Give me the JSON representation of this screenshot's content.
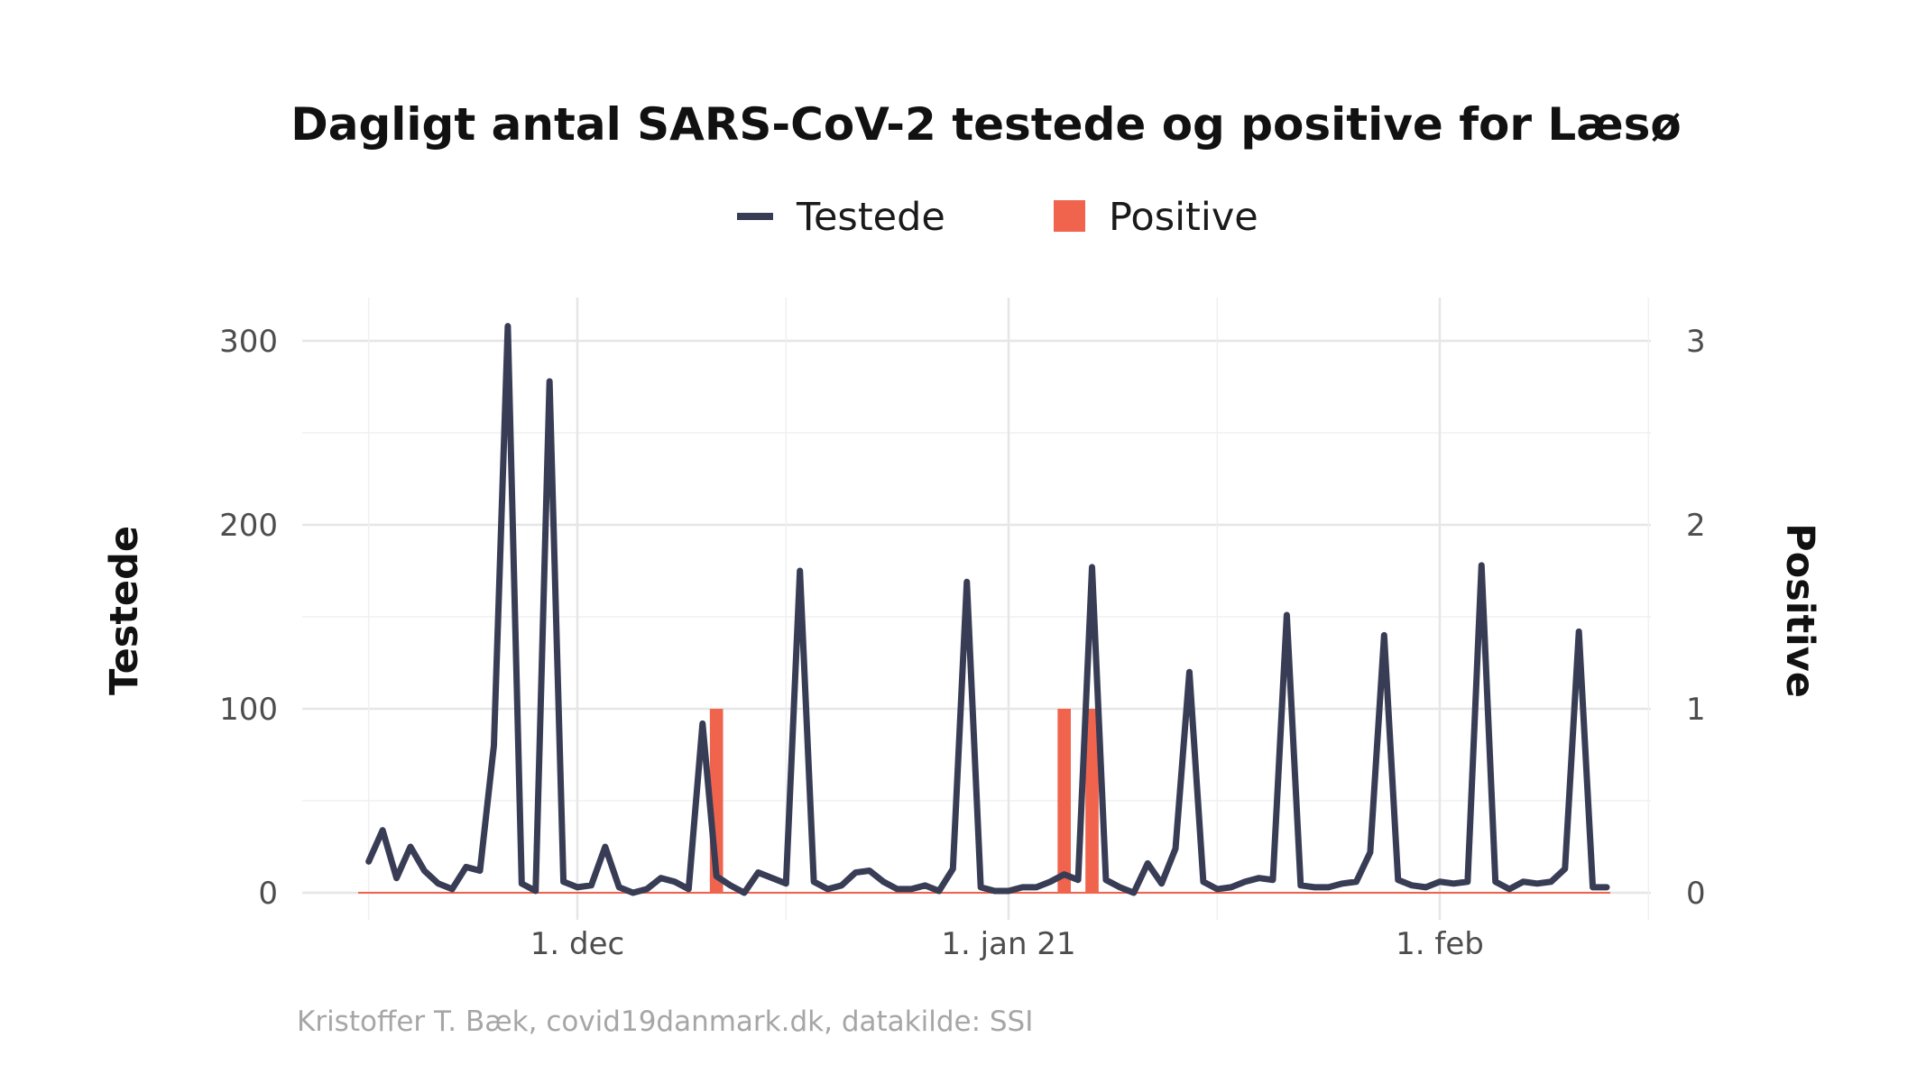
{
  "chart_data": {
    "type": "line",
    "title": "Dagligt antal SARS-CoV-2 testede og positive for Læsø",
    "caption": "Kristoffer T. Bæk, covid19danmark.dk, datakilde: SSI",
    "legend": {
      "placement": "top",
      "entries": [
        {
          "label": "Testede",
          "color": "#383d55",
          "symbol": "line"
        },
        {
          "label": "Positive",
          "color": "#f0644e",
          "symbol": "square"
        }
      ]
    },
    "y_left": {
      "label": "Testede",
      "lim": [
        0,
        320
      ],
      "ticks": [
        0,
        100,
        200,
        300
      ]
    },
    "y_right": {
      "label": "Positive",
      "lim": [
        0,
        3.2
      ],
      "ticks": [
        0,
        1,
        2,
        3
      ]
    },
    "x_axis": {
      "start": "2020-11-16",
      "end": "2021-02-15",
      "ticks": [
        {
          "date": "2020-12-01",
          "label": "1. dec"
        },
        {
          "date": "2021-01-01",
          "label": "1. jan 21"
        },
        {
          "date": "2021-02-01",
          "label": "1. feb"
        }
      ],
      "grid_minor_dates": [
        "2020-11-16",
        "2020-12-16",
        "2021-01-16",
        "2021-02-16"
      ],
      "grid": true
    },
    "series": [
      {
        "name": "Testede",
        "type": "line",
        "color": "#383d55",
        "data": [
          [
            "2020-11-16",
            17
          ],
          [
            "2020-11-17",
            34
          ],
          [
            "2020-11-18",
            8
          ],
          [
            "2020-11-19",
            25
          ],
          [
            "2020-11-20",
            12
          ],
          [
            "2020-11-21",
            5
          ],
          [
            "2020-11-22",
            2
          ],
          [
            "2020-11-23",
            14
          ],
          [
            "2020-11-24",
            12
          ],
          [
            "2020-11-25",
            80
          ],
          [
            "2020-11-26",
            308
          ],
          [
            "2020-11-27",
            5
          ],
          [
            "2020-11-28",
            1
          ],
          [
            "2020-11-29",
            278
          ],
          [
            "2020-11-30",
            6
          ],
          [
            "2020-12-01",
            3
          ],
          [
            "2020-12-02",
            4
          ],
          [
            "2020-12-03",
            25
          ],
          [
            "2020-12-04",
            3
          ],
          [
            "2020-12-05",
            0
          ],
          [
            "2020-12-06",
            2
          ],
          [
            "2020-12-07",
            8
          ],
          [
            "2020-12-08",
            6
          ],
          [
            "2020-12-09",
            2
          ],
          [
            "2020-12-10",
            92
          ],
          [
            "2020-12-11",
            9
          ],
          [
            "2020-12-12",
            4
          ],
          [
            "2020-12-13",
            0
          ],
          [
            "2020-12-14",
            11
          ],
          [
            "2020-12-15",
            8
          ],
          [
            "2020-12-16",
            5
          ],
          [
            "2020-12-17",
            175
          ],
          [
            "2020-12-18",
            6
          ],
          [
            "2020-12-19",
            2
          ],
          [
            "2020-12-20",
            4
          ],
          [
            "2020-12-21",
            11
          ],
          [
            "2020-12-22",
            12
          ],
          [
            "2020-12-23",
            6
          ],
          [
            "2020-12-24",
            2
          ],
          [
            "2020-12-25",
            2
          ],
          [
            "2020-12-26",
            4
          ],
          [
            "2020-12-27",
            1
          ],
          [
            "2020-12-28",
            13
          ],
          [
            "2020-12-29",
            169
          ],
          [
            "2020-12-30",
            3
          ],
          [
            "2020-12-31",
            1
          ],
          [
            "2021-01-01",
            1
          ],
          [
            "2021-01-02",
            3
          ],
          [
            "2021-01-03",
            3
          ],
          [
            "2021-01-04",
            6
          ],
          [
            "2021-01-05",
            10
          ],
          [
            "2021-01-06",
            7
          ],
          [
            "2021-01-07",
            177
          ],
          [
            "2021-01-08",
            7
          ],
          [
            "2021-01-09",
            3
          ],
          [
            "2021-01-10",
            0
          ],
          [
            "2021-01-11",
            16
          ],
          [
            "2021-01-12",
            5
          ],
          [
            "2021-01-13",
            24
          ],
          [
            "2021-01-14",
            120
          ],
          [
            "2021-01-15",
            6
          ],
          [
            "2021-01-16",
            2
          ],
          [
            "2021-01-17",
            3
          ],
          [
            "2021-01-18",
            6
          ],
          [
            "2021-01-19",
            8
          ],
          [
            "2021-01-20",
            7
          ],
          [
            "2021-01-21",
            151
          ],
          [
            "2021-01-22",
            4
          ],
          [
            "2021-01-23",
            3
          ],
          [
            "2021-01-24",
            3
          ],
          [
            "2021-01-25",
            5
          ],
          [
            "2021-01-26",
            6
          ],
          [
            "2021-01-27",
            22
          ],
          [
            "2021-01-28",
            140
          ],
          [
            "2021-01-29",
            7
          ],
          [
            "2021-01-30",
            4
          ],
          [
            "2021-01-31",
            3
          ],
          [
            "2021-02-01",
            6
          ],
          [
            "2021-02-02",
            5
          ],
          [
            "2021-02-03",
            6
          ],
          [
            "2021-02-04",
            178
          ],
          [
            "2021-02-05",
            6
          ],
          [
            "2021-02-06",
            2
          ],
          [
            "2021-02-07",
            6
          ],
          [
            "2021-02-08",
            5
          ],
          [
            "2021-02-09",
            6
          ],
          [
            "2021-02-10",
            13
          ],
          [
            "2021-02-11",
            142
          ],
          [
            "2021-02-12",
            3
          ],
          [
            "2021-02-13",
            3
          ]
        ]
      },
      {
        "name": "Positive",
        "type": "bar",
        "axis": "right",
        "color": "#f0644e",
        "data": [
          [
            "2020-12-11",
            1
          ],
          [
            "2021-01-05",
            1
          ],
          [
            "2021-01-07",
            1
          ]
        ]
      }
    ]
  }
}
